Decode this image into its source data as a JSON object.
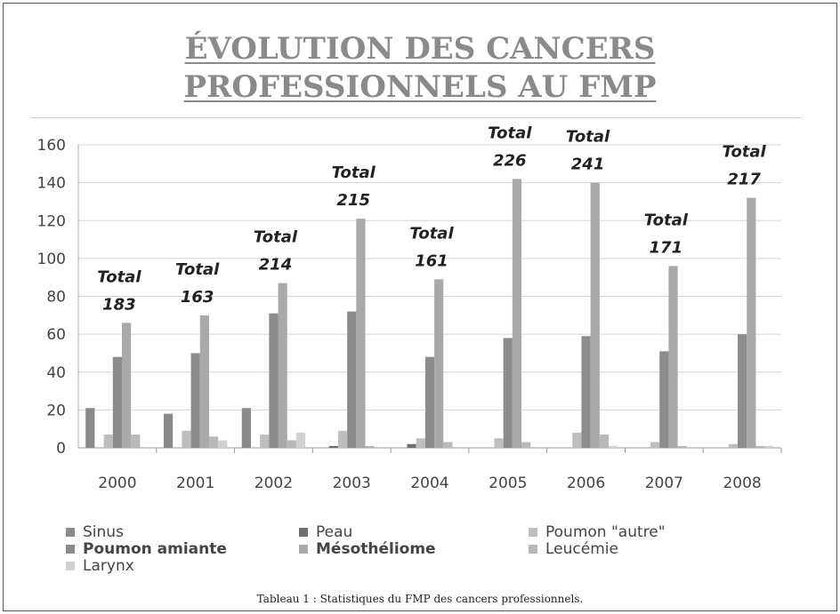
{
  "chart_data": {
    "type": "bar",
    "title_lines": [
      "ÉVOLUTION DES CANCERS",
      "PROFESSIONNELS AU FMP"
    ],
    "categories": [
      "2000",
      "2001",
      "2002",
      "2003",
      "2004",
      "2005",
      "2006",
      "2007",
      "2008"
    ],
    "series": [
      {
        "name": "Sinus",
        "color": "#8a8a8a",
        "bold": false,
        "values": [
          21,
          18,
          21,
          0,
          0,
          0,
          0,
          0,
          0
        ]
      },
      {
        "name": "Peau",
        "color": "#6f6f6f",
        "bold": false,
        "values": [
          0,
          0,
          0,
          1,
          2,
          0,
          0,
          0,
          0
        ]
      },
      {
        "name": "Poumon \"autre\"",
        "color": "#bebebe",
        "bold": false,
        "values": [
          7,
          9,
          7,
          9,
          5,
          5,
          8,
          3,
          2
        ]
      },
      {
        "name": "Poumon amiante",
        "color": "#8c8c8c",
        "bold": true,
        "values": [
          48,
          50,
          71,
          72,
          48,
          58,
          59,
          51,
          60
        ]
      },
      {
        "name": "Mésothéliome",
        "color": "#a9a9a9",
        "bold": true,
        "values": [
          66,
          70,
          87,
          121,
          89,
          142,
          140,
          96,
          132
        ]
      },
      {
        "name": "Leucémie",
        "color": "#b9b9b9",
        "bold": false,
        "values": [
          7,
          6,
          4,
          1,
          3,
          3,
          7,
          1,
          1
        ]
      },
      {
        "name": "Larynx",
        "color": "#d0d0d0",
        "bold": false,
        "values": [
          0,
          4,
          8,
          0,
          0,
          0,
          1,
          0,
          1
        ]
      }
    ],
    "totals_label": "Total",
    "totals": [
      183,
      163,
      214,
      215,
      161,
      226,
      241,
      171,
      217
    ],
    "yticks": [
      0,
      20,
      40,
      60,
      80,
      100,
      120,
      140,
      160
    ],
    "ylim": [
      0,
      160
    ],
    "grid": true,
    "legend_position": "bottom",
    "xlabel": "",
    "ylabel": ""
  },
  "caption": "Tableau 1 : Statistiques du FMP des cancers professionnels."
}
